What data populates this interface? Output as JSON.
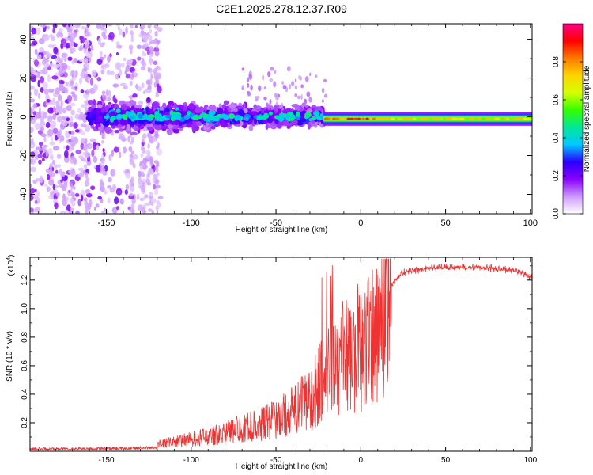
{
  "title": "C2E1.2025.278.12.37.R09",
  "chart_data": [
    {
      "type": "heatmap",
      "name": "spectrogram",
      "xlabel": "Height of straight line (km)",
      "ylabel": "Frequency (Hz)",
      "xlim": [
        -195,
        101
      ],
      "ylim": [
        -50,
        48
      ],
      "xticks": [
        -150,
        -100,
        -50,
        0,
        50,
        100
      ],
      "yticks": [
        -40,
        -20,
        0,
        20,
        40
      ],
      "colorbar": {
        "label": "Normalized spectral amplitude",
        "range": [
          0,
          1
        ],
        "ticks": [
          0.0,
          0.2,
          0.4,
          0.6,
          0.8
        ],
        "tick_labels": [
          "0.0",
          "0.2",
          "0.4",
          "0.6",
          "0.8"
        ],
        "colors": [
          "#ffffff",
          "#cc99ff",
          "#8a00ff",
          "#2a00ff",
          "#00c8ff",
          "#00e69a",
          "#33ff00",
          "#d4ff00",
          "#ffd400",
          "#ff7a00",
          "#ff0000",
          "#ff0088"
        ]
      },
      "features": {
        "broadband_scatter_range_km": [
          -195,
          -118
        ],
        "ridge_frequency_hz": -1,
        "ridge_start_km": -22,
        "peak_amplitude": 0.95
      }
    },
    {
      "type": "line",
      "name": "snr",
      "xlabel": "Height of straight line (km)",
      "ylabel": "SNR (10 * v/v)",
      "multiplier": "(x10",
      "multiplier_exp": "4",
      "xlim": [
        -195,
        101
      ],
      "ylim": [
        0,
        1.36
      ],
      "xticks": [
        -150,
        -100,
        -50,
        0,
        50,
        100
      ],
      "yticks": [
        0.2,
        0.4,
        0.6,
        0.8,
        1.0,
        1.2
      ],
      "ytick_labels": [
        "0.2",
        "0.4",
        "0.6",
        "0.8",
        "1.0",
        "1.2"
      ],
      "color": "#ee3333",
      "series": [
        {
          "name": "SNR",
          "x": [
            -195,
            -180,
            -160,
            -140,
            -130,
            -120,
            -110,
            -100,
            -90,
            -80,
            -70,
            -60,
            -50,
            -40,
            -30,
            -25,
            -20,
            -15,
            -10,
            -5,
            0,
            5,
            10,
            15,
            20,
            25,
            30,
            40,
            50,
            60,
            70,
            80,
            90,
            95,
            100
          ],
          "values": [
            0.02,
            0.02,
            0.025,
            0.03,
            0.04,
            0.05,
            0.07,
            0.09,
            0.11,
            0.14,
            0.17,
            0.2,
            0.24,
            0.3,
            0.4,
            0.5,
            0.62,
            0.7,
            0.72,
            0.68,
            0.72,
            0.82,
            0.95,
            1.1,
            1.2,
            1.25,
            1.27,
            1.28,
            1.29,
            1.29,
            1.29,
            1.28,
            1.27,
            1.25,
            1.22
          ]
        }
      ]
    }
  ]
}
